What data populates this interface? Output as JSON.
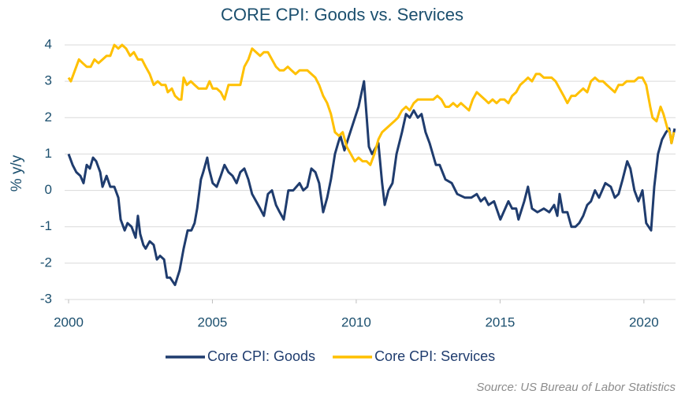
{
  "chart_data": {
    "type": "line",
    "title": "CORE CPI: Goods vs. Services",
    "ylabel": "% y/y",
    "source": "Source: US Bureau of Labor Statistics",
    "xlim": [
      2000,
      2021.1
    ],
    "xticks": [
      2000,
      2005,
      2010,
      2015,
      2020
    ],
    "ylim": [
      -3,
      4
    ],
    "yticks": [
      -3,
      -2,
      -1,
      0,
      1,
      2,
      3,
      4
    ],
    "grid": true,
    "legend": "bottom",
    "series": [
      {
        "name": "Core CPI: Goods",
        "color": "#1f3c6e",
        "x": [
          2000.0,
          2000.14,
          2000.27,
          2000.41,
          2000.52,
          2000.63,
          2000.74,
          2000.85,
          2000.96,
          2001.1,
          2001.18,
          2001.32,
          2001.45,
          2001.59,
          2001.73,
          2001.81,
          2001.95,
          2002.05,
          2002.19,
          2002.33,
          2002.41,
          2002.49,
          2002.6,
          2002.68,
          2002.82,
          2002.96,
          2003.07,
          2003.18,
          2003.32,
          2003.42,
          2003.53,
          2003.7,
          2003.86,
          2004.0,
          2004.14,
          2004.27,
          2004.38,
          2004.47,
          2004.6,
          2004.68,
          2004.82,
          2004.88,
          2005.01,
          2005.15,
          2005.29,
          2005.42,
          2005.56,
          2005.7,
          2005.84,
          2005.97,
          2006.11,
          2006.25,
          2006.38,
          2006.52,
          2006.66,
          2006.79,
          2006.93,
          2007.07,
          2007.21,
          2007.34,
          2007.48,
          2007.64,
          2007.81,
          2008.03,
          2008.16,
          2008.3,
          2008.44,
          2008.58,
          2008.71,
          2008.85,
          2008.99,
          2009.12,
          2009.26,
          2009.37,
          2009.45,
          2009.59,
          2009.75,
          2010.08,
          2010.27,
          2010.44,
          2010.55,
          2010.77,
          2010.9,
          2010.99,
          2011.12,
          2011.26,
          2011.4,
          2011.59,
          2011.73,
          2011.86,
          2012.0,
          2012.14,
          2012.27,
          2012.41,
          2012.55,
          2012.77,
          2012.9,
          2013.1,
          2013.32,
          2013.51,
          2013.78,
          2014.0,
          2014.19,
          2014.33,
          2014.47,
          2014.6,
          2014.79,
          2015.01,
          2015.29,
          2015.42,
          2015.56,
          2015.64,
          2015.84,
          2015.97,
          2016.11,
          2016.3,
          2016.52,
          2016.71,
          2016.88,
          2016.99,
          2017.07,
          2017.18,
          2017.34,
          2017.48,
          2017.62,
          2017.75,
          2017.89,
          2018.03,
          2018.16,
          2018.3,
          2018.44,
          2018.66,
          2018.85,
          2018.99,
          2019.12,
          2019.26,
          2019.42,
          2019.53,
          2019.67,
          2019.81,
          2019.95,
          2020.08,
          2020.25,
          2020.36,
          2020.49,
          2020.63,
          2020.77,
          2020.88,
          2020.96,
          2021.07
        ],
        "values": [
          1.0,
          0.7,
          0.5,
          0.4,
          0.2,
          0.7,
          0.6,
          0.9,
          0.8,
          0.5,
          0.1,
          0.4,
          0.1,
          0.1,
          -0.2,
          -0.8,
          -1.1,
          -0.9,
          -1.0,
          -1.3,
          -0.7,
          -1.2,
          -1.5,
          -1.6,
          -1.4,
          -1.5,
          -1.9,
          -1.8,
          -1.9,
          -2.4,
          -2.4,
          -2.6,
          -2.2,
          -1.6,
          -1.1,
          -1.1,
          -0.9,
          -0.5,
          0.3,
          0.5,
          0.9,
          0.6,
          0.2,
          0.1,
          0.4,
          0.7,
          0.5,
          0.4,
          0.2,
          0.5,
          0.6,
          0.3,
          -0.1,
          -0.3,
          -0.5,
          -0.7,
          -0.1,
          0.0,
          -0.4,
          -0.6,
          -0.8,
          0.0,
          0.0,
          0.2,
          0.0,
          0.1,
          0.6,
          0.5,
          0.2,
          -0.6,
          -0.2,
          0.3,
          1.0,
          1.3,
          1.5,
          1.1,
          1.5,
          2.3,
          3.0,
          1.2,
          1.0,
          1.3,
          0.2,
          -0.4,
          0.0,
          0.2,
          1.0,
          1.6,
          2.1,
          2.0,
          2.2,
          2.0,
          2.1,
          1.6,
          1.3,
          0.7,
          0.7,
          0.3,
          0.2,
          -0.1,
          -0.2,
          -0.2,
          -0.1,
          -0.3,
          -0.2,
          -0.4,
          -0.3,
          -0.8,
          -0.3,
          -0.5,
          -0.5,
          -0.8,
          -0.3,
          0.1,
          -0.5,
          -0.6,
          -0.5,
          -0.6,
          -0.4,
          -0.7,
          -0.1,
          -0.6,
          -0.6,
          -1.0,
          -1.0,
          -0.9,
          -0.7,
          -0.4,
          -0.3,
          0.0,
          -0.2,
          0.2,
          0.1,
          -0.2,
          -0.1,
          0.3,
          0.8,
          0.6,
          0.0,
          -0.3,
          0.0,
          -0.9,
          -1.1,
          0.1,
          1.0,
          1.4,
          1.6,
          1.7,
          1.3,
          1.7
        ]
      },
      {
        "name": "Core CPI: Services",
        "color": "#ffc000",
        "x": [
          2000.0,
          2000.08,
          2000.22,
          2000.36,
          2000.49,
          2000.63,
          2000.77,
          2000.9,
          2001.04,
          2001.18,
          2001.32,
          2001.45,
          2001.59,
          2001.73,
          2001.86,
          2002.0,
          2002.14,
          2002.27,
          2002.41,
          2002.55,
          2002.68,
          2002.82,
          2002.96,
          2003.1,
          2003.23,
          2003.37,
          2003.45,
          2003.59,
          2003.7,
          2003.84,
          2003.92,
          2004.0,
          2004.11,
          2004.25,
          2004.38,
          2004.52,
          2004.66,
          2004.79,
          2004.9,
          2005.01,
          2005.15,
          2005.29,
          2005.42,
          2005.56,
          2005.7,
          2005.84,
          2005.97,
          2006.11,
          2006.25,
          2006.38,
          2006.52,
          2006.66,
          2006.79,
          2006.93,
          2007.07,
          2007.21,
          2007.34,
          2007.48,
          2007.62,
          2007.75,
          2007.89,
          2008.03,
          2008.16,
          2008.3,
          2008.44,
          2008.58,
          2008.71,
          2008.85,
          2008.99,
          2009.12,
          2009.26,
          2009.4,
          2009.53,
          2009.67,
          2009.81,
          2009.95,
          2010.08,
          2010.22,
          2010.36,
          2010.49,
          2010.63,
          2010.77,
          2010.9,
          2011.04,
          2011.18,
          2011.32,
          2011.45,
          2011.59,
          2011.73,
          2011.86,
          2012.0,
          2012.14,
          2012.41,
          2012.68,
          2012.82,
          2012.96,
          2013.1,
          2013.23,
          2013.37,
          2013.51,
          2013.64,
          2013.78,
          2013.92,
          2014.05,
          2014.19,
          2014.33,
          2014.47,
          2014.6,
          2014.74,
          2014.88,
          2015.01,
          2015.15,
          2015.29,
          2015.42,
          2015.56,
          2015.7,
          2015.84,
          2015.97,
          2016.11,
          2016.25,
          2016.38,
          2016.52,
          2016.79,
          2016.93,
          2017.07,
          2017.21,
          2017.34,
          2017.48,
          2017.62,
          2017.75,
          2017.89,
          2018.03,
          2018.16,
          2018.3,
          2018.44,
          2018.58,
          2018.71,
          2018.85,
          2018.99,
          2019.12,
          2019.26,
          2019.4,
          2019.67,
          2019.81,
          2019.95,
          2020.08,
          2020.22,
          2020.3,
          2020.44,
          2020.58,
          2020.68,
          2020.82,
          2020.9,
          2020.96,
          2021.04
        ],
        "values": [
          3.1,
          3.0,
          3.3,
          3.6,
          3.5,
          3.4,
          3.4,
          3.6,
          3.5,
          3.6,
          3.7,
          3.7,
          4.0,
          3.9,
          4.0,
          3.9,
          3.7,
          3.8,
          3.6,
          3.6,
          3.4,
          3.2,
          2.9,
          3.0,
          2.9,
          2.9,
          2.7,
          2.8,
          2.6,
          2.5,
          2.5,
          3.1,
          2.9,
          3.0,
          2.9,
          2.8,
          2.8,
          2.8,
          3.0,
          2.8,
          2.8,
          2.7,
          2.5,
          2.9,
          2.9,
          2.9,
          2.9,
          3.4,
          3.6,
          3.9,
          3.8,
          3.7,
          3.8,
          3.8,
          3.6,
          3.4,
          3.3,
          3.3,
          3.4,
          3.3,
          3.2,
          3.3,
          3.3,
          3.3,
          3.2,
          3.1,
          2.9,
          2.6,
          2.4,
          2.1,
          1.6,
          1.5,
          1.6,
          1.2,
          1.0,
          0.8,
          0.9,
          0.8,
          0.8,
          0.7,
          1.0,
          1.4,
          1.6,
          1.7,
          1.8,
          1.9,
          2.0,
          2.2,
          2.3,
          2.2,
          2.4,
          2.5,
          2.5,
          2.5,
          2.6,
          2.5,
          2.3,
          2.3,
          2.4,
          2.3,
          2.4,
          2.3,
          2.2,
          2.5,
          2.7,
          2.6,
          2.5,
          2.4,
          2.5,
          2.4,
          2.5,
          2.5,
          2.4,
          2.6,
          2.7,
          2.9,
          3.0,
          3.1,
          3.0,
          3.2,
          3.2,
          3.1,
          3.1,
          3.0,
          2.8,
          2.6,
          2.4,
          2.6,
          2.6,
          2.7,
          2.8,
          2.7,
          3.0,
          3.1,
          3.0,
          3.0,
          2.9,
          2.8,
          2.7,
          2.9,
          2.9,
          3.0,
          3.0,
          3.1,
          3.1,
          2.9,
          2.3,
          2.0,
          1.9,
          2.3,
          2.1,
          1.7,
          1.6,
          1.3,
          1.6
        ]
      }
    ]
  }
}
